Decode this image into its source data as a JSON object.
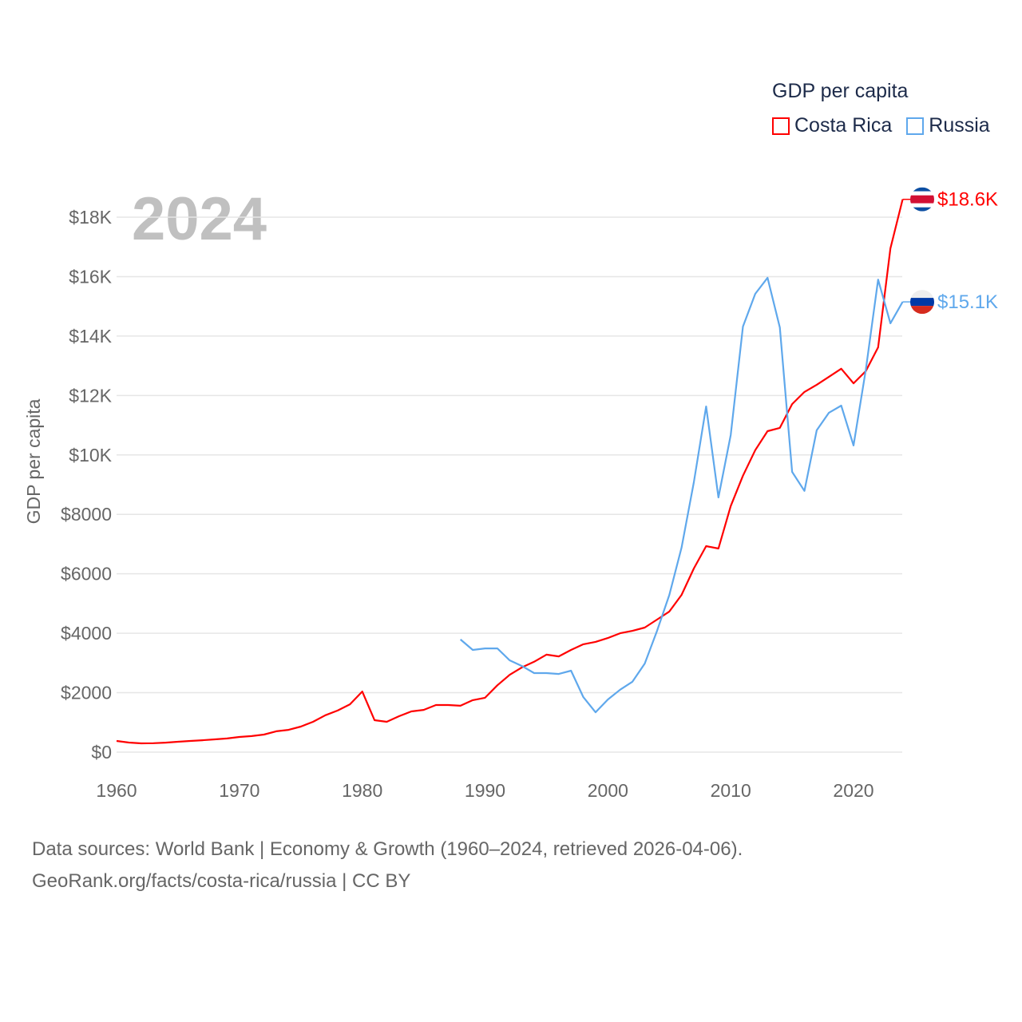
{
  "chart_data": {
    "type": "line",
    "title": "GDP per capita",
    "year_label": "2024",
    "ylabel": "GDP per capita",
    "xlabel": "",
    "xlim": [
      1960,
      2024
    ],
    "ylim": [
      0,
      18600
    ],
    "x_ticks": [
      "1960",
      "1970",
      "1980",
      "1990",
      "2000",
      "2010",
      "2020"
    ],
    "y_ticks": [
      "$0",
      "$2000",
      "$4000",
      "$6000",
      "$8000",
      "$10K",
      "$12K",
      "$14K",
      "$16K",
      "$18K"
    ],
    "grid": true,
    "legend_position": "top-right",
    "series": [
      {
        "name": "Costa Rica",
        "color": "#ff0000",
        "end_label": "$18.6K",
        "flag": "costa-rica",
        "start_year": 1960,
        "values": [
          376,
          322,
          296,
          300,
          320,
          350,
          376,
          400,
          430,
          460,
          510,
          540,
          590,
          700,
          750,
          860,
          1020,
          1240,
          1400,
          1610,
          2040,
          1075,
          1020,
          1210,
          1370,
          1420,
          1585,
          1585,
          1560,
          1750,
          1830,
          2250,
          2600,
          2850,
          3040,
          3280,
          3220,
          3440,
          3630,
          3710,
          3840,
          4000,
          4080,
          4190,
          4460,
          4730,
          5290,
          6180,
          6930,
          6850,
          8280,
          9300,
          10160,
          10800,
          10910,
          11710,
          12120,
          12360,
          12630,
          12900,
          12410,
          12820,
          13620,
          16950,
          18600
        ]
      },
      {
        "name": "Russia",
        "color": "#5fa8ec",
        "end_label": "$15.1K",
        "flag": "russia",
        "start_year": 1988,
        "values": [
          3790,
          3440,
          3490,
          3490,
          3090,
          2900,
          2660,
          2660,
          2630,
          2740,
          1850,
          1340,
          1770,
          2100,
          2370,
          2980,
          4080,
          5290,
          6880,
          9080,
          11630,
          8570,
          10670,
          14320,
          15420,
          15960,
          14290,
          9430,
          8790,
          10830,
          11420,
          11660,
          10320,
          12870,
          15900,
          14430,
          15150
        ]
      }
    ]
  },
  "footer": {
    "line1": "Data sources: World Bank | Economy & Growth (1960–2024, retrieved 2026-04-06).",
    "line2": "GeoRank.org/facts/costa-rica/russia | CC BY"
  }
}
